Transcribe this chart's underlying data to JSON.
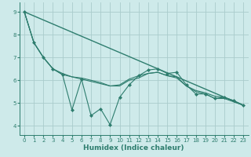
{
  "background_color": "#ceeaea",
  "grid_color": "#aacccc",
  "line_color": "#2e7d6e",
  "xlabel": "Humidex (Indice chaleur)",
  "xlim": [
    -0.5,
    23.5
  ],
  "ylim": [
    3.6,
    9.4
  ],
  "yticks": [
    4,
    5,
    6,
    7,
    8,
    9
  ],
  "xticks": [
    0,
    1,
    2,
    3,
    4,
    5,
    6,
    7,
    8,
    9,
    10,
    11,
    12,
    13,
    14,
    15,
    16,
    17,
    18,
    19,
    20,
    21,
    22,
    23
  ],
  "line_volatile_x": [
    0,
    1,
    2,
    3,
    4,
    5,
    6,
    7,
    8,
    9,
    10,
    11,
    12,
    13,
    14,
    15,
    16,
    17,
    18,
    19,
    20,
    21,
    22,
    23
  ],
  "line_volatile_y": [
    9.0,
    7.65,
    7.0,
    6.5,
    6.25,
    4.7,
    6.05,
    4.45,
    4.75,
    4.05,
    5.25,
    5.8,
    6.2,
    6.45,
    6.5,
    6.3,
    6.35,
    5.8,
    5.4,
    5.4,
    5.2,
    5.25,
    5.1,
    4.9
  ],
  "line_smooth_x": [
    0,
    1,
    2,
    3,
    4,
    5,
    6,
    7,
    8,
    9,
    10,
    11,
    12,
    13,
    14,
    15,
    16,
    17,
    18,
    19,
    20,
    21,
    22,
    23
  ],
  "line_smooth_y": [
    9.0,
    7.65,
    7.0,
    6.5,
    6.25,
    6.15,
    6.05,
    5.95,
    5.85,
    5.75,
    5.8,
    6.05,
    6.2,
    6.3,
    6.35,
    6.2,
    6.1,
    5.75,
    5.5,
    5.4,
    5.2,
    5.2,
    5.05,
    4.9
  ],
  "line_trend_x": [
    0,
    23
  ],
  "line_trend_y": [
    9.0,
    4.9
  ],
  "line_mid_x": [
    0,
    1,
    2,
    3,
    4,
    5,
    6,
    7,
    8,
    9,
    10,
    11,
    12,
    13,
    14,
    15,
    16,
    17,
    18,
    19,
    20,
    21,
    22,
    23
  ],
  "line_mid_y": [
    9.0,
    7.65,
    7.0,
    6.5,
    6.3,
    6.15,
    6.1,
    6.0,
    5.9,
    5.75,
    5.75,
    6.0,
    6.1,
    6.3,
    6.35,
    6.2,
    6.15,
    5.75,
    5.55,
    5.45,
    5.3,
    5.25,
    5.1,
    4.9
  ]
}
